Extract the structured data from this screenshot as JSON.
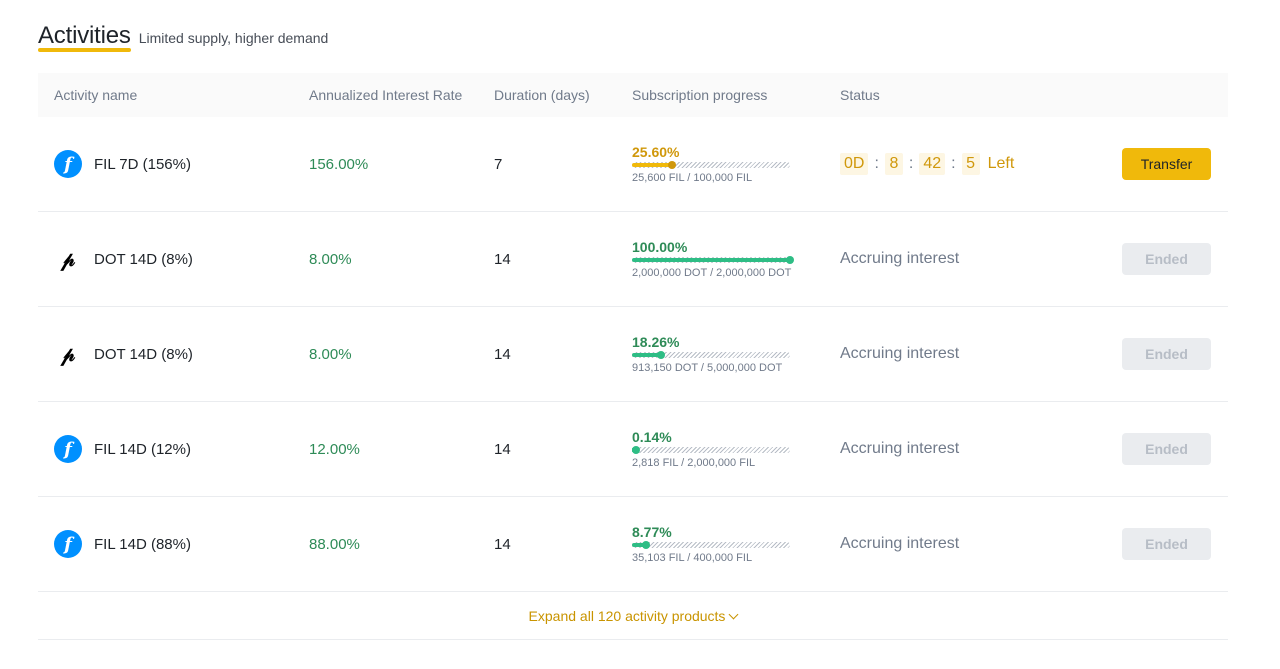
{
  "header": {
    "title": "Activities",
    "subtitle": "Limited supply, higher demand"
  },
  "table": {
    "columns": [
      "Activity name",
      "Annualized Interest Rate",
      "Duration (days)",
      "Subscription progress",
      "Status"
    ],
    "rows": [
      {
        "coin": "FIL",
        "icon": "filecoin-icon",
        "name": "FIL 7D (156%)",
        "rate": "156.00%",
        "duration": "7",
        "progress_pct": "25.60%",
        "progress_value": 25.6,
        "amount": "25,600 FIL / 100,000 FIL",
        "status": "countdown",
        "countdown": {
          "d": "0D",
          "h": "8",
          "m": "42",
          "s": "5",
          "suffix": "Left"
        },
        "action": "Transfer",
        "action_enabled": true
      },
      {
        "coin": "DOT",
        "icon": "polkadot-icon",
        "name": "DOT 14D (8%)",
        "rate": "8.00%",
        "duration": "14",
        "progress_pct": "100.00%",
        "progress_value": 100,
        "amount": "2,000,000 DOT / 2,000,000 DOT",
        "status": "Accruing interest",
        "action": "Ended",
        "action_enabled": false
      },
      {
        "coin": "DOT",
        "icon": "polkadot-icon",
        "name": "DOT 14D (8%)",
        "rate": "8.00%",
        "duration": "14",
        "progress_pct": "18.26%",
        "progress_value": 18.26,
        "amount": "913,150 DOT / 5,000,000 DOT",
        "status": "Accruing interest",
        "action": "Ended",
        "action_enabled": false
      },
      {
        "coin": "FIL",
        "icon": "filecoin-icon",
        "name": "FIL 14D (12%)",
        "rate": "12.00%",
        "duration": "14",
        "progress_pct": "0.14%",
        "progress_value": 0.14,
        "amount": "2,818 FIL / 2,000,000 FIL",
        "status": "Accruing interest",
        "action": "Ended",
        "action_enabled": false
      },
      {
        "coin": "FIL",
        "icon": "filecoin-icon",
        "name": "FIL 14D (88%)",
        "rate": "88.00%",
        "duration": "14",
        "progress_pct": "8.77%",
        "progress_value": 8.77,
        "amount": "35,103 FIL / 400,000 FIL",
        "status": "Accruing interest",
        "action": "Ended",
        "action_enabled": false
      }
    ]
  },
  "expand": {
    "label": "Expand all 120 activity products"
  },
  "colors": {
    "accent": "#f0b90b",
    "green": "#2ebd85",
    "muted": "#707a8a"
  }
}
